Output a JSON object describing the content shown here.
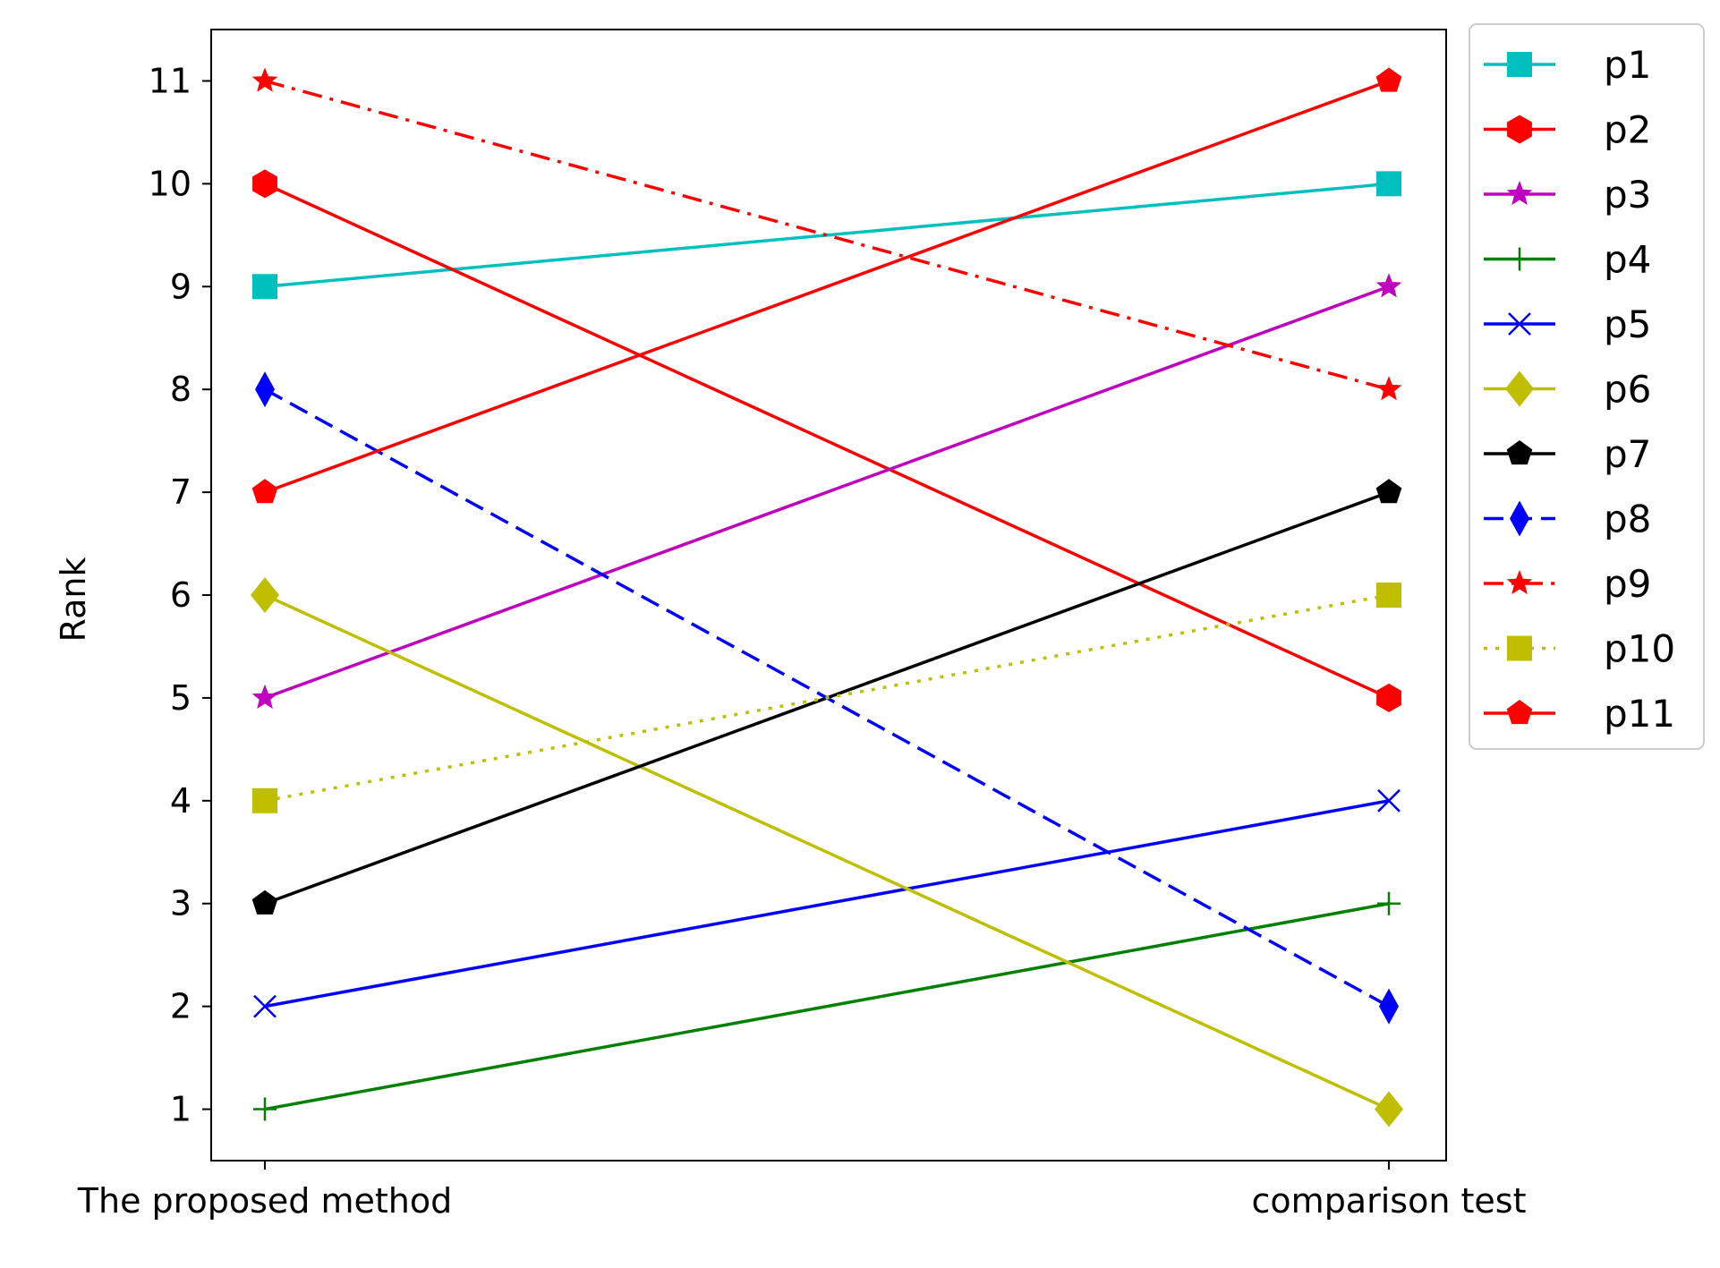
{
  "chart_data": {
    "type": "line",
    "title": "",
    "xlabel": "",
    "ylabel": "Rank",
    "categories": [
      "The proposed method",
      "comparison test"
    ],
    "ylim": [
      0.5,
      11.5
    ],
    "yticks": [
      1,
      2,
      3,
      4,
      5,
      6,
      7,
      8,
      9,
      10,
      11
    ],
    "grid": false,
    "legend_position": "outside-upper-right",
    "series": [
      {
        "name": "p1",
        "values": [
          9,
          10
        ],
        "color": "#00bfbf",
        "marker": "square",
        "linestyle": "solid"
      },
      {
        "name": "p2",
        "values": [
          10,
          5
        ],
        "color": "#ff0000",
        "marker": "hexagon",
        "linestyle": "solid"
      },
      {
        "name": "p3",
        "values": [
          5,
          9
        ],
        "color": "#bf00bf",
        "marker": "star",
        "linestyle": "solid"
      },
      {
        "name": "p4",
        "values": [
          1,
          3
        ],
        "color": "#008000",
        "marker": "plus",
        "linestyle": "solid"
      },
      {
        "name": "p5",
        "values": [
          2,
          4
        ],
        "color": "#0000ff",
        "marker": "x",
        "linestyle": "solid"
      },
      {
        "name": "p6",
        "values": [
          6,
          1
        ],
        "color": "#bfbf00",
        "marker": "diamond",
        "linestyle": "solid"
      },
      {
        "name": "p7",
        "values": [
          3,
          7
        ],
        "color": "#000000",
        "marker": "pentagon",
        "linestyle": "solid"
      },
      {
        "name": "p8",
        "values": [
          8,
          2
        ],
        "color": "#0000ff",
        "marker": "thin-diamond",
        "linestyle": "dashed"
      },
      {
        "name": "p9",
        "values": [
          11,
          8
        ],
        "color": "#ff0000",
        "marker": "star",
        "linestyle": "dashdot"
      },
      {
        "name": "p10",
        "values": [
          4,
          6
        ],
        "color": "#bfbf00",
        "marker": "square",
        "linestyle": "dotted"
      },
      {
        "name": "p11",
        "values": [
          7,
          11
        ],
        "color": "#ff0000",
        "marker": "pentagon",
        "linestyle": "solid"
      }
    ]
  }
}
